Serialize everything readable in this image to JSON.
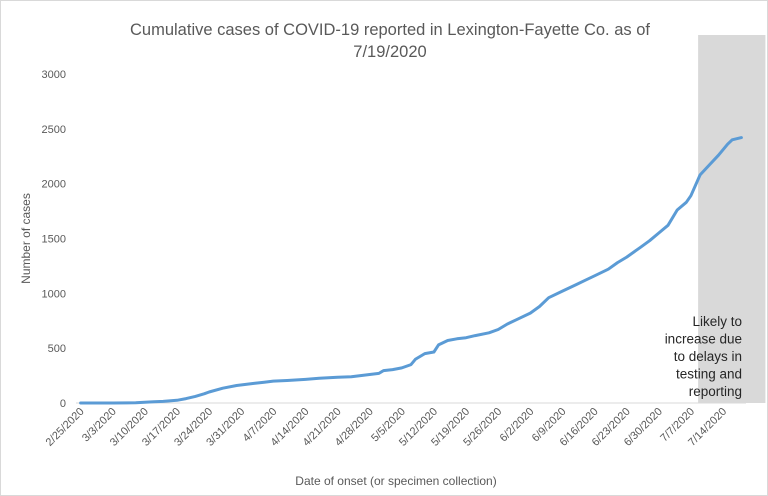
{
  "chart_data": {
    "type": "line",
    "title": "Cumulative cases of COVID-19 reported in Lexington-Fayette Co.  as of\n7/19/2020",
    "xlabel": "Date of onset (or specimen collection)",
    "ylabel": "Number of cases",
    "ylim": [
      0,
      3000
    ],
    "yticks": [
      0,
      500,
      1000,
      1500,
      2000,
      2500,
      3000
    ],
    "xticks": [
      "2/25/2020",
      "3/3/2020",
      "3/10/2020",
      "3/17/2020",
      "3/24/2020",
      "3/31/2020",
      "4/7/2020",
      "4/14/2020",
      "4/21/2020",
      "4/28/2020",
      "5/5/2020",
      "5/12/2020",
      "5/19/2020",
      "5/26/2020",
      "6/2/2020",
      "6/9/2020",
      "6/16/2020",
      "6/23/2020",
      "6/30/2020",
      "7/7/2020",
      "7/14/2020"
    ],
    "grid": false,
    "legend": "none",
    "series_color": "#5b9bd5",
    "shade_color": "#d9d9d9",
    "shaded_range": [
      "7/9/2020",
      "7/18/2020"
    ],
    "annotation": "Likely to\nincrease due\nto delays in\ntesting and\nreporting",
    "points": [
      [
        "2/25/2020",
        0
      ],
      [
        "3/3/2020",
        0
      ],
      [
        "3/8/2020",
        2
      ],
      [
        "3/10/2020",
        6
      ],
      [
        "3/12/2020",
        12
      ],
      [
        "3/14/2020",
        15
      ],
      [
        "3/17/2020",
        25
      ],
      [
        "3/19/2020",
        40
      ],
      [
        "3/21/2020",
        60
      ],
      [
        "3/23/2020",
        85
      ],
      [
        "3/24/2020",
        100
      ],
      [
        "3/27/2020",
        135
      ],
      [
        "3/30/2020",
        160
      ],
      [
        "4/1/2020",
        170
      ],
      [
        "4/3/2020",
        180
      ],
      [
        "4/5/2020",
        190
      ],
      [
        "4/7/2020",
        200
      ],
      [
        "4/10/2020",
        205
      ],
      [
        "4/14/2020",
        215
      ],
      [
        "4/17/2020",
        225
      ],
      [
        "4/21/2020",
        235
      ],
      [
        "4/24/2020",
        240
      ],
      [
        "4/28/2020",
        260
      ],
      [
        "4/30/2020",
        270
      ],
      [
        "5/1/2020",
        295
      ],
      [
        "5/3/2020",
        305
      ],
      [
        "5/5/2020",
        320
      ],
      [
        "5/7/2020",
        350
      ],
      [
        "5/8/2020",
        400
      ],
      [
        "5/10/2020",
        450
      ],
      [
        "5/12/2020",
        465
      ],
      [
        "5/13/2020",
        530
      ],
      [
        "5/15/2020",
        570
      ],
      [
        "5/17/2020",
        585
      ],
      [
        "5/19/2020",
        595
      ],
      [
        "5/21/2020",
        615
      ],
      [
        "5/24/2020",
        640
      ],
      [
        "5/26/2020",
        670
      ],
      [
        "5/28/2020",
        720
      ],
      [
        "5/30/2020",
        760
      ],
      [
        "6/2/2020",
        820
      ],
      [
        "6/4/2020",
        880
      ],
      [
        "6/6/2020",
        960
      ],
      [
        "6/9/2020",
        1020
      ],
      [
        "6/12/2020",
        1080
      ],
      [
        "6/14/2020",
        1120
      ],
      [
        "6/16/2020",
        1160
      ],
      [
        "6/19/2020",
        1220
      ],
      [
        "6/21/2020",
        1280
      ],
      [
        "6/23/2020",
        1330
      ],
      [
        "6/26/2020",
        1420
      ],
      [
        "6/28/2020",
        1480
      ],
      [
        "6/30/2020",
        1550
      ],
      [
        "7/2/2020",
        1620
      ],
      [
        "7/4/2020",
        1760
      ],
      [
        "7/6/2020",
        1830
      ],
      [
        "7/7/2020",
        1890
      ],
      [
        "7/9/2020",
        2080
      ],
      [
        "7/11/2020",
        2170
      ],
      [
        "7/13/2020",
        2260
      ],
      [
        "7/15/2020",
        2360
      ],
      [
        "7/16/2020",
        2400
      ],
      [
        "7/18/2020",
        2420
      ]
    ]
  }
}
